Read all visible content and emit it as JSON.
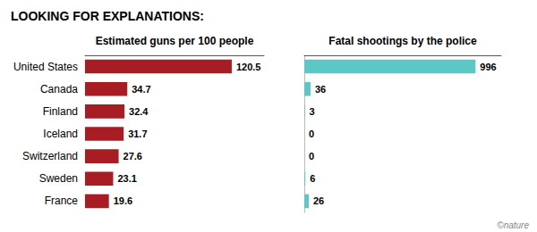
{
  "chart_data": [
    {
      "type": "bar",
      "orientation": "horizontal",
      "title": "LOOKING FOR EXPLANATIONS:",
      "xlabel": "Estimated guns per 100 people",
      "categories": [
        "United States",
        "Canada",
        "Finland",
        "Iceland",
        "Switzerland",
        "Sweden",
        "France"
      ],
      "values": [
        120.5,
        34.7,
        32.4,
        31.7,
        27.6,
        23.1,
        19.6
      ],
      "color": "#a81c24",
      "xlim": [
        0,
        147.01
      ],
      "grid": false,
      "data_labels": true,
      "tick_labels": "y"
    },
    {
      "type": "bar",
      "orientation": "horizontal",
      "xlabel": "Fatal shootings by the police",
      "categories": [
        "United States",
        "Canada",
        "Finland",
        "Iceland",
        "Switzerland",
        "Sweden",
        "France"
      ],
      "values": [
        996,
        36,
        3,
        0,
        0,
        6,
        26
      ],
      "color": "#5bc8c5",
      "xlim": [
        0,
        1145.4
      ],
      "grid": false,
      "data_labels": true,
      "tick_labels": false,
      "annotations": [
        "©nature"
      ]
    }
  ]
}
